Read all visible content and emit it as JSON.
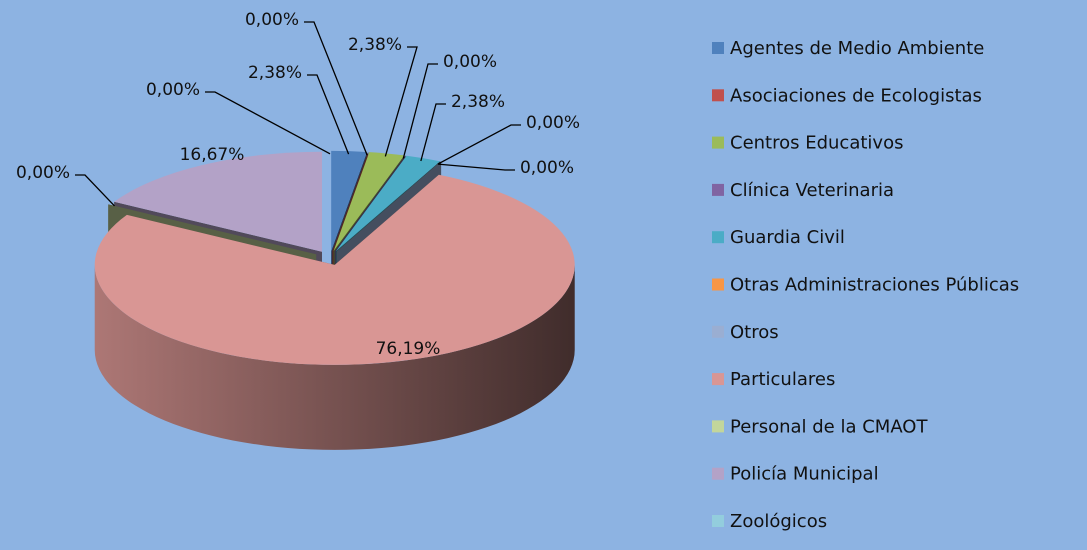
{
  "chart_data": {
    "type": "pie3d",
    "categories": [
      "Agentes de Medio Ambiente",
      "Asociaciones de Ecologistas",
      "Centros Educativos",
      "Clínica Veterinaria",
      "Guardia Civil",
      "Otras Administraciones Públicas",
      "Otros",
      "Particulares",
      "Personal de la CMAOT",
      "Policía Municipal",
      "Zoológicos"
    ],
    "values": [
      2.38,
      0,
      2.38,
      0,
      2.38,
      0,
      0,
      76.19,
      0,
      16.67,
      0
    ],
    "value_labels": [
      "2,38%",
      "0,00%",
      "2,38%",
      "0,00%",
      "2,38%",
      "0,00%",
      "0,00%",
      "76,19%",
      "0,00%",
      "16,67%",
      "0,00%"
    ],
    "colors": [
      "#4f81bd",
      "#c0504d",
      "#9bbb59",
      "#8064a2",
      "#4bacc6",
      "#f79646",
      "#9aaed2",
      "#d99694",
      "#c3d69b",
      "#b3a2c7",
      "#93cddd"
    ],
    "legend": "right"
  }
}
